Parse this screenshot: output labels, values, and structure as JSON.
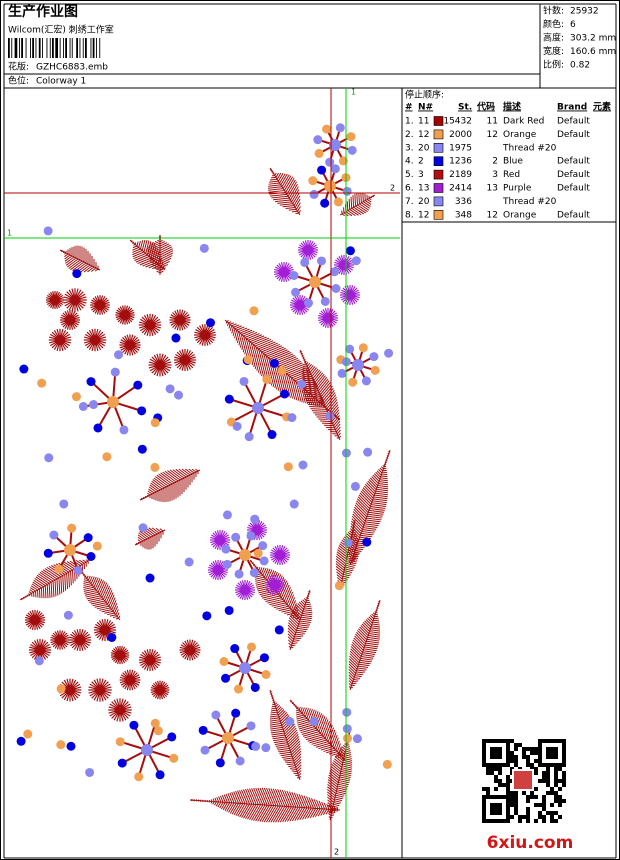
{
  "header": {
    "title": "生产作业图",
    "studio": "Wilcom(汇宏) 刺绣工作室",
    "design_label": "花版:",
    "design_file": "GZHC6883.emb",
    "colorway_label": "色位:",
    "colorway": "Colorway 1"
  },
  "info": [
    {
      "label": "针数:",
      "value": "25932"
    },
    {
      "label": "颜色:",
      "value": "6"
    },
    {
      "label": "高度:",
      "value": "303.2 mm"
    },
    {
      "label": "宽度:",
      "value": "160.6 mm"
    },
    {
      "label": "比例:",
      "value": "0.82"
    }
  ],
  "stop_sequence": {
    "title": "停止顺序:",
    "columns": [
      "#",
      "N#",
      "St.",
      "代码",
      "描述",
      "Brand",
      "元素"
    ],
    "rows": [
      {
        "index": "1.",
        "needle": "11",
        "color": "#a00000",
        "stitches": "15432",
        "code": "11",
        "description": "Dark Red",
        "brand": "Default"
      },
      {
        "index": "2.",
        "needle": "12",
        "color": "#f0a050",
        "stitches": "2000",
        "code": "12",
        "description": "Orange",
        "brand": "Default"
      },
      {
        "index": "3.",
        "needle": "20",
        "color": "#8a86f0",
        "stitches": "1975",
        "code": "",
        "description": "Thread #20",
        "brand": ""
      },
      {
        "index": "4.",
        "needle": "2",
        "color": "#0000e0",
        "stitches": "1236",
        "code": "2",
        "description": "Blue",
        "brand": "Default"
      },
      {
        "index": "5.",
        "needle": "3",
        "color": "#b01010",
        "stitches": "2189",
        "code": "3",
        "description": "Red",
        "brand": "Default"
      },
      {
        "index": "6.",
        "needle": "13",
        "color": "#a020d0",
        "stitches": "2414",
        "code": "13",
        "description": "Purple",
        "brand": "Default"
      },
      {
        "index": "7.",
        "needle": "20",
        "color": "#8a86f0",
        "stitches": "336",
        "code": "",
        "description": "Thread #20",
        "brand": ""
      },
      {
        "index": "8.",
        "needle": "12",
        "color": "#f0a050",
        "stitches": "348",
        "code": "12",
        "description": "Orange",
        "brand": "Default"
      }
    ]
  },
  "guides": {
    "green_top": "1",
    "red_right": "2",
    "green_left": "1",
    "red_bottom": "2"
  },
  "watermark": "6xiu.com"
}
